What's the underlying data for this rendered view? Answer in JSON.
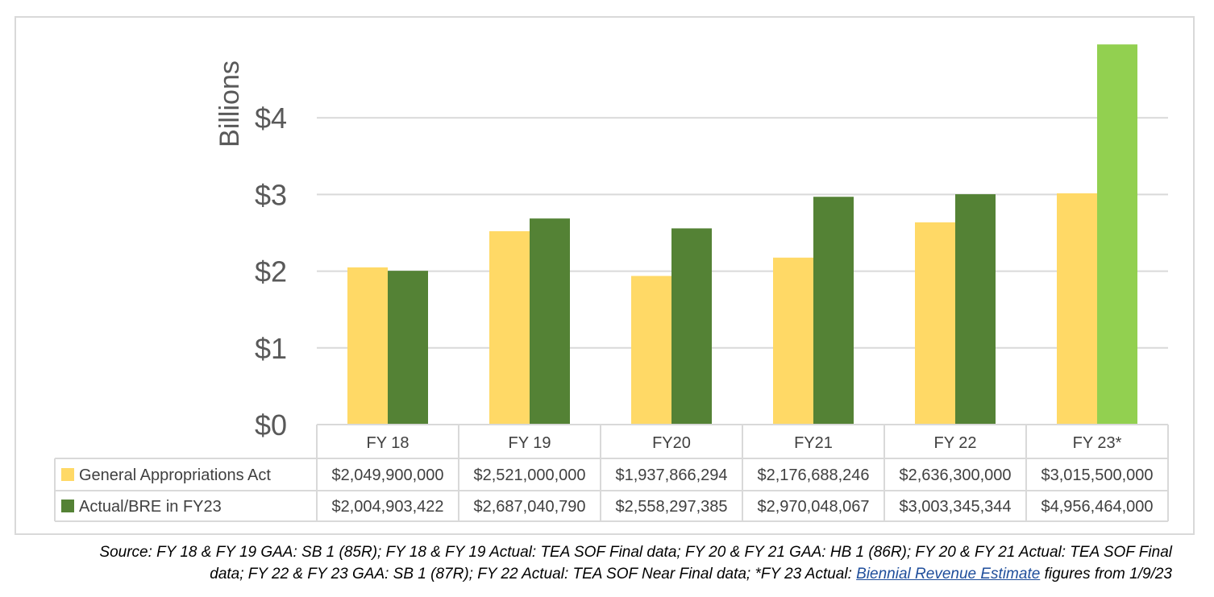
{
  "chart_data": {
    "type": "bar",
    "ylabel": "Billions",
    "ylim": [
      0,
      5
    ],
    "yticks": [
      0,
      1,
      2,
      3,
      4
    ],
    "ytick_labels": [
      "$0",
      "$1",
      "$2",
      "$3",
      "$4"
    ],
    "categories": [
      "FY 18",
      "FY 19",
      "FY20",
      "FY21",
      "FY 22",
      "FY 23*"
    ],
    "grid": true,
    "legend": "table-rows",
    "series": [
      {
        "name": "General Appropriations Act",
        "color": "#ffd966",
        "values": [
          2.0499,
          2.521,
          1.937866294,
          2.176688246,
          2.6363,
          3.0155
        ],
        "table_values": [
          "$2,049,900,000",
          "$2,521,000,000",
          "$1,937,866,294",
          "$2,176,688,246",
          "$2,636,300,000",
          "$3,015,500,000"
        ]
      },
      {
        "name": "Actual/BRE in FY23",
        "color": "#548235",
        "highlight_last_color": "#92d050",
        "values": [
          2.004903422,
          2.68704079,
          2.558297385,
          2.970048067,
          3.003345344,
          4.956464
        ],
        "table_values": [
          "$2,004,903,422",
          "$2,687,040,790",
          "$2,558,297,385",
          "$2,970,048,067",
          "$3,003,345,344",
          "$4,956,464,000"
        ]
      }
    ]
  },
  "source": {
    "line1": "Source: FY 18 & FY 19 GAA: SB 1 (85R); FY 18 & FY 19 Actual: TEA SOF Final data; FY 20 & FY 21 GAA: HB 1 (86R); FY 20 & FY 21 Actual: TEA SOF Final",
    "line2_before": "data; FY 22 & FY 23 GAA: SB 1 (87R); FY 22 Actual: TEA SOF Near Final data; *FY 23 Actual: ",
    "link": "Biennial Revenue Estimate",
    "line2_after": " figures from 1/9/23"
  }
}
